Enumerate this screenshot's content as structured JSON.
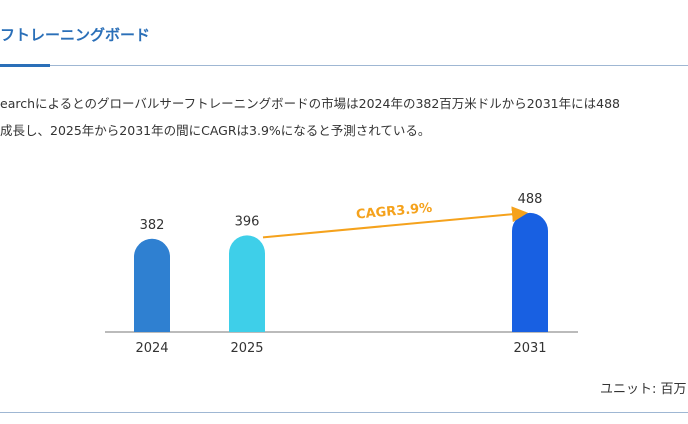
{
  "header": {
    "title": "フトレーニングボード"
  },
  "description": [
    "earchによるとのグローバルサーフトレーニングボードの市場は2024年の382百万米ドルから2031年には488",
    "成長し、2025年から2031年の間にCAGRは3.9%になると予測されている。"
  ],
  "chart_data": {
    "type": "bar",
    "categories": [
      "2024",
      "2025",
      "2031"
    ],
    "values": [
      382,
      396,
      488
    ],
    "colors": [
      "#2f80d1",
      "#3ecfe9",
      "#1860e2"
    ],
    "annotation": "CAGR3.9%",
    "annotation_color": "#f5a21c",
    "unit_label": "ユニット: 百万"
  }
}
